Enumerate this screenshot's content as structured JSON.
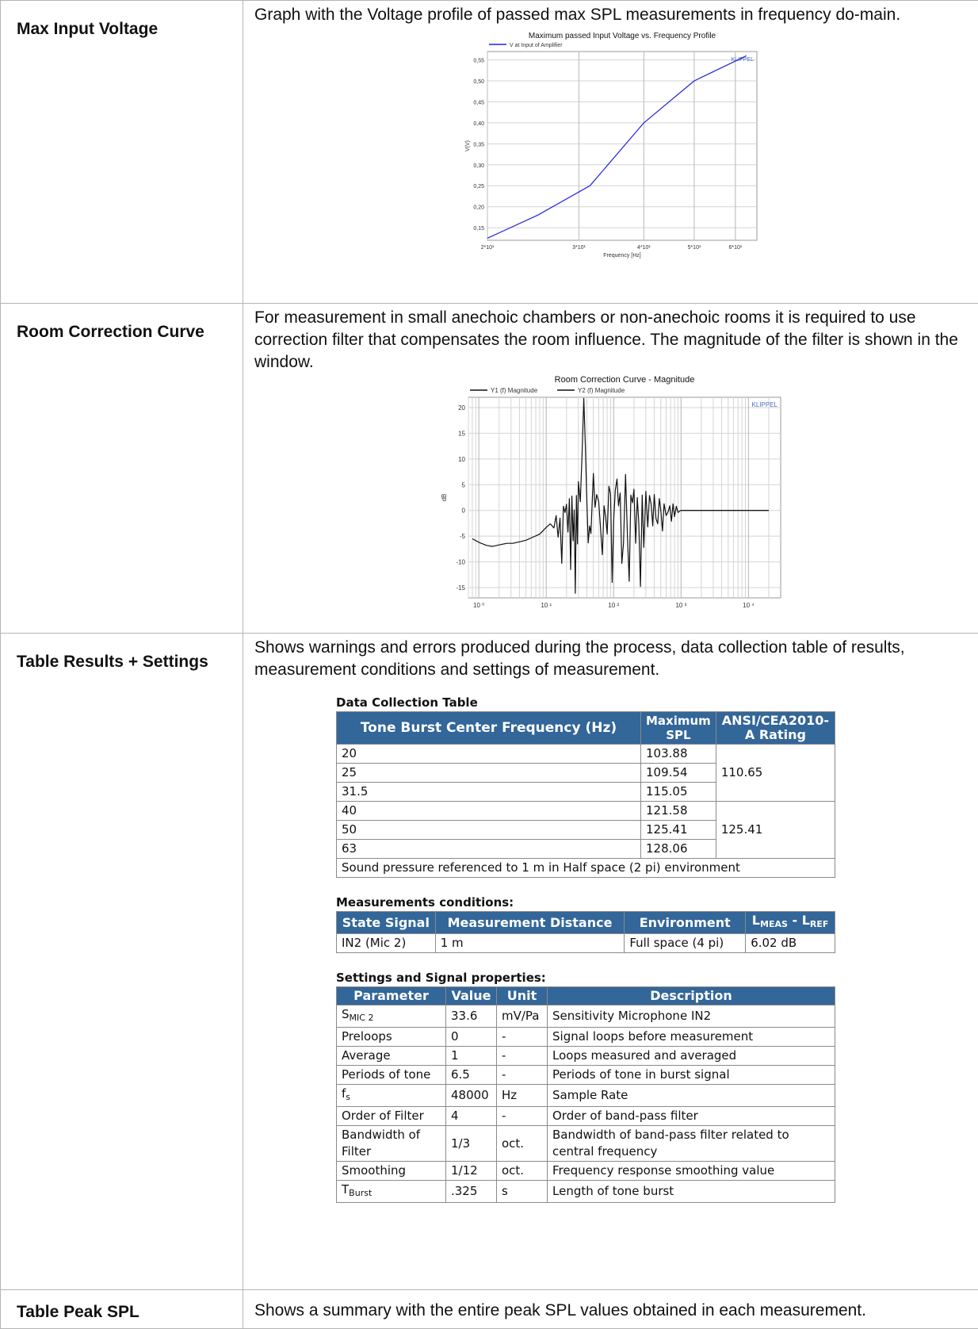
{
  "rows": [
    {
      "label": "Max Input Voltage",
      "description": "Graph with the Voltage profile of passed max SPL measurements in frequency do-main."
    },
    {
      "label": "Room Correction Curve",
      "description": "For measurement in small anechoic chambers or non-anechoic rooms it is required to use correction filter that compensates the room influence. The magnitude of the filter is shown in the window."
    },
    {
      "label": "Table Results + Settings",
      "description": "Shows warnings and errors produced during the process, data collection table of results, measurement conditions and settings of measurement."
    },
    {
      "label": "Table Peak SPL",
      "description": "Shows a summary with the entire peak SPL values obtained in each measurement."
    }
  ],
  "chart_data": [
    {
      "type": "line",
      "title": "Maximum passed Input Voltage vs. Frequency Profile",
      "legend": [
        "V at Input of Amplifier"
      ],
      "watermark": "KLIPPEL",
      "xlabel": "Frequency [Hz]",
      "ylabel": "V(V)",
      "x_scale": "log",
      "xlim": [
        20,
        66
      ],
      "ylim": [
        0.12,
        0.57
      ],
      "x_ticks": [
        20,
        30,
        40,
        50,
        60
      ],
      "x_tick_labels": [
        "2*10¹",
        "3*10¹",
        "4*10¹",
        "5*10¹",
        "6*10¹"
      ],
      "y_ticks": [
        0.15,
        0.2,
        0.25,
        0.3,
        0.35,
        0.4,
        0.45,
        0.5,
        0.55
      ],
      "y_tick_labels": [
        "0,15",
        "0,20",
        "0,25",
        "0,30",
        "0,35",
        "0,40",
        "0,45",
        "0,50",
        "0,55"
      ],
      "grid": true,
      "legend_position": "top-left",
      "color": "#2222dd",
      "series": [
        {
          "name": "V at Input of Amplifier",
          "x": [
            20,
            25,
            31.5,
            40,
            50,
            63
          ],
          "y": [
            0.125,
            0.18,
            0.25,
            0.4,
            0.5,
            0.56
          ]
        }
      ]
    },
    {
      "type": "line",
      "title": "Room Correction Curve - Magnitude",
      "legend": [
        "Y1 (f) Magnitude",
        "Y2 (f) Magnitude"
      ],
      "watermark": "KLIPPEL",
      "xlabel": "",
      "ylabel": "dB",
      "x_scale": "log",
      "xlim": [
        0.7,
        30000
      ],
      "ylim": [
        -17,
        22
      ],
      "x_ticks": [
        1,
        10,
        100,
        1000,
        10000
      ],
      "x_tick_labels": [
        "10 ⁰",
        "10 ¹",
        "10 ²",
        "10 ³",
        "10 ⁴"
      ],
      "y_ticks": [
        -15,
        -10,
        -5,
        0,
        5,
        10,
        15,
        20
      ],
      "y_tick_labels": [
        "-15",
        "-10",
        "-5",
        "0",
        "5",
        "10",
        "15",
        "20"
      ],
      "grid": true,
      "legend_position": "top-left",
      "series": [
        {
          "name": "Y1 (f) Magnitude",
          "x": [
            0.8,
            1,
            1.3,
            1.6,
            2,
            2.6,
            3.2,
            4,
            5,
            6.3,
            8,
            10,
            11.5,
            13,
            14,
            15,
            16,
            17,
            18,
            19,
            20,
            21,
            22,
            23,
            24,
            25,
            26,
            27,
            28,
            29,
            30,
            32,
            34,
            36,
            38,
            40,
            42,
            44,
            46,
            48,
            50,
            53,
            56,
            60,
            64,
            68,
            72,
            76,
            80,
            85,
            90,
            95,
            100,
            106,
            112,
            118,
            125,
            132,
            140,
            150,
            160,
            170,
            180,
            190,
            200,
            212,
            224,
            236,
            250,
            265,
            280,
            300,
            320,
            340,
            360,
            380,
            400,
            425,
            450,
            475,
            500,
            530,
            560,
            600,
            640,
            680,
            720,
            760,
            800,
            850,
            900,
            950,
            1000,
            2000,
            5000,
            10000,
            20000
          ],
          "y": [
            -5.5,
            -6.2,
            -6.8,
            -7.0,
            -6.7,
            -6.4,
            -6.4,
            -6.1,
            -5.8,
            -5.2,
            -4.6,
            -3.3,
            -2.6,
            -3.4,
            -1.0,
            -5.2,
            -1.5,
            -10.3,
            0.8,
            -0.4,
            1.2,
            -4.2,
            2.3,
            -11.5,
            2.8,
            -5.9,
            0.1,
            -16.1,
            2.9,
            -6.5,
            5.6,
            1.7,
            10.8,
            21.8,
            12.4,
            2.1,
            -6.3,
            -3.0,
            -4.5,
            1.6,
            7.2,
            0.6,
            3.1,
            1.7,
            -3.6,
            -8.6,
            0.9,
            -1.3,
            -4.6,
            4.7,
            3.2,
            -14.0,
            -1.9,
            4.0,
            6.1,
            0.9,
            3.4,
            -10.3,
            -6.4,
            7.0,
            -5.1,
            -13.8,
            3.0,
            1.5,
            4.1,
            -6.4,
            2.5,
            -2.4,
            -14.8,
            3.0,
            -7.2,
            3.7,
            -3.2,
            2.9,
            1.2,
            -3.0,
            3.1,
            -1.6,
            -2.6,
            2.3,
            0.0,
            -4.0,
            1.3,
            -1.0,
            -0.3,
            0.9,
            -2.1,
            1.3,
            -1.2,
            0.8,
            -0.4,
            -0.1,
            0.0,
            0.0,
            0.0,
            0.0,
            0.0
          ]
        },
        {
          "name": "Y2 (f) Magnitude",
          "x": [
            1000,
            2000,
            5000,
            10000,
            20000
          ],
          "y": [
            0.0,
            0.0,
            0.0,
            0.0,
            0.0
          ]
        }
      ]
    }
  ],
  "data_collection": {
    "title": "Data Collection Table",
    "headers": [
      "Tone Burst Center Frequency (Hz)",
      "Maximum SPL",
      "ANSI/CEA2010-A Rating"
    ],
    "rows": [
      [
        "20",
        "103.88"
      ],
      [
        "25",
        "109.54"
      ],
      [
        "31.5",
        "115.05"
      ],
      [
        "40",
        "121.58"
      ],
      [
        "50",
        "125.41"
      ],
      [
        "63",
        "128.06"
      ]
    ],
    "ratings": [
      "110.65",
      "125.41"
    ],
    "footer": "Sound pressure referenced to 1 m in Half space (2 pi) environment"
  },
  "conditions": {
    "title": "Measurements conditions:",
    "headers": [
      "State Signal",
      "Measurement Distance",
      "Environment"
    ],
    "header_last_main": "L",
    "header_last_sub1": "MEAS",
    "header_last_sep": " - L",
    "header_last_sub2": "REF",
    "row": [
      "IN2 (Mic 2)",
      "1 m",
      "Full space (4 pi)",
      "6.02 dB"
    ]
  },
  "settings": {
    "title": "Settings and Signal properties:",
    "headers": [
      "Parameter",
      "Value",
      "Unit",
      "Description"
    ],
    "rows": [
      {
        "param": "S",
        "sub": "MIC 2",
        "value": "33.6",
        "unit": "mV/Pa",
        "desc": "Sensitivity Microphone IN2"
      },
      {
        "param": "Preloops",
        "sub": "",
        "value": "0",
        "unit": "-",
        "desc": "Signal loops before measurement"
      },
      {
        "param": "Average",
        "sub": "",
        "value": "1",
        "unit": "-",
        "desc": "Loops measured and averaged"
      },
      {
        "param": "Periods of tone",
        "sub": "",
        "value": "6.5",
        "unit": "-",
        "desc": "Periods of tone in burst signal"
      },
      {
        "param": "f",
        "sub": "s",
        "value": "48000",
        "unit": "Hz",
        "desc": "Sample Rate"
      },
      {
        "param": "Order of Filter",
        "sub": "",
        "value": "4",
        "unit": "-",
        "desc": "Order of band-pass filter"
      },
      {
        "param": "Bandwidth of Filter",
        "sub": "",
        "value": "1/3",
        "unit": "oct.",
        "desc": "Bandwidth of band-pass filter related to central frequency"
      },
      {
        "param": "Smoothing",
        "sub": "",
        "value": "1/12",
        "unit": "oct.",
        "desc": "Frequency response smoothing value"
      },
      {
        "param": "T",
        "sub": "Burst",
        "value": ".325",
        "unit": "s",
        "desc": "Length of tone burst"
      }
    ]
  }
}
